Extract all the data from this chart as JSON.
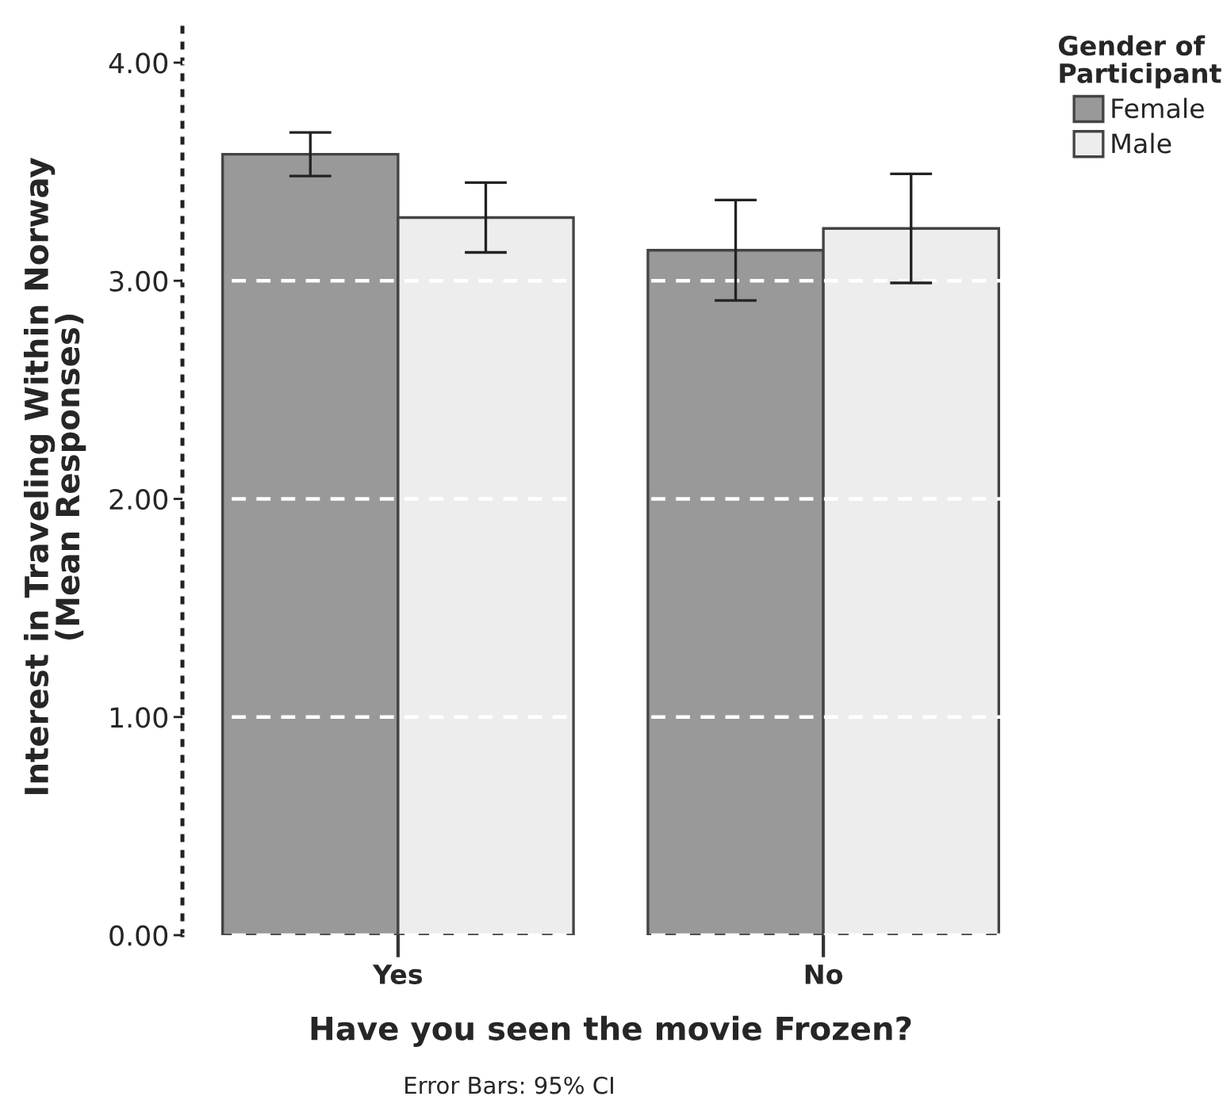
{
  "chart_data": {
    "type": "bar",
    "categories": [
      "Yes",
      "No"
    ],
    "series": [
      {
        "name": "Female",
        "color": "#999999",
        "values": [
          3.58,
          3.14
        ],
        "errors": [
          0.1,
          0.23
        ]
      },
      {
        "name": "Male",
        "color": "#ededed",
        "values": [
          3.29,
          3.24
        ],
        "errors": [
          0.16,
          0.25
        ]
      }
    ],
    "xlabel": "Have you seen the movie Frozen?",
    "ylabel": "Interest in Traveling Within Norway\n(Mean Responses)",
    "legend_title": "Gender of\nParticipant",
    "annotations": [
      "Error Bars: 95% CI"
    ],
    "ylim": [
      0,
      4.2
    ],
    "yticks": [
      {
        "value": 0,
        "label": "0.00"
      },
      {
        "value": 1,
        "label": "1.00"
      },
      {
        "value": 2,
        "label": "2.00"
      },
      {
        "value": 3,
        "label": "3.00"
      },
      {
        "value": 4,
        "label": "4.00"
      }
    ],
    "grid": "y",
    "legend": "top right"
  }
}
